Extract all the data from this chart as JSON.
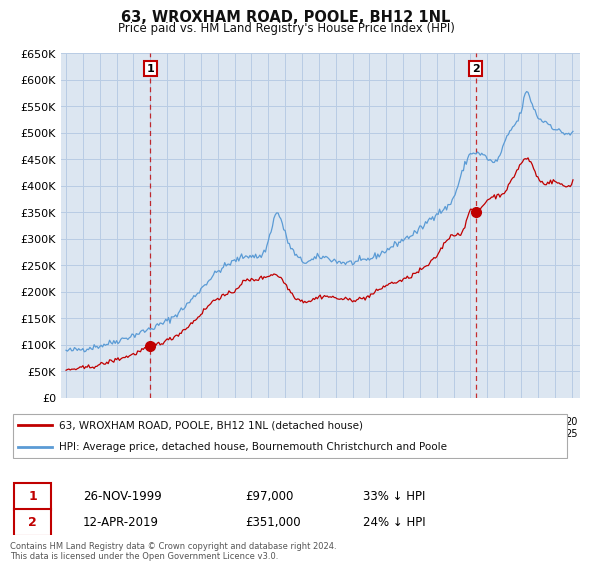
{
  "title": "63, WROXHAM ROAD, POOLE, BH12 1NL",
  "subtitle": "Price paid vs. HM Land Registry's House Price Index (HPI)",
  "legend_line1": "63, WROXHAM ROAD, POOLE, BH12 1NL (detached house)",
  "legend_line2": "HPI: Average price, detached house, Bournemouth Christchurch and Poole",
  "annotation1_date": "26-NOV-1999",
  "annotation1_price": "£97,000",
  "annotation1_hpi": "33% ↓ HPI",
  "annotation2_date": "12-APR-2019",
  "annotation2_price": "£351,000",
  "annotation2_hpi": "24% ↓ HPI",
  "footer": "Contains HM Land Registry data © Crown copyright and database right 2024.\nThis data is licensed under the Open Government Licence v3.0.",
  "hpi_color": "#5b9bd5",
  "price_color": "#c00000",
  "annotation_box_color": "#c00000",
  "plot_bg_color": "#dce6f1",
  "background_color": "#ffffff",
  "grid_color": "#b8cce4",
  "ylim": [
    0,
    650000
  ],
  "yticks": [
    0,
    50000,
    100000,
    150000,
    200000,
    250000,
    300000,
    350000,
    400000,
    450000,
    500000,
    550000,
    600000,
    650000
  ],
  "sale1_x": 2000.0,
  "sale1_y": 97000,
  "sale2_x": 2019.3,
  "sale2_y": 351000,
  "xmin": 1995.0,
  "xmax": 2025.5
}
